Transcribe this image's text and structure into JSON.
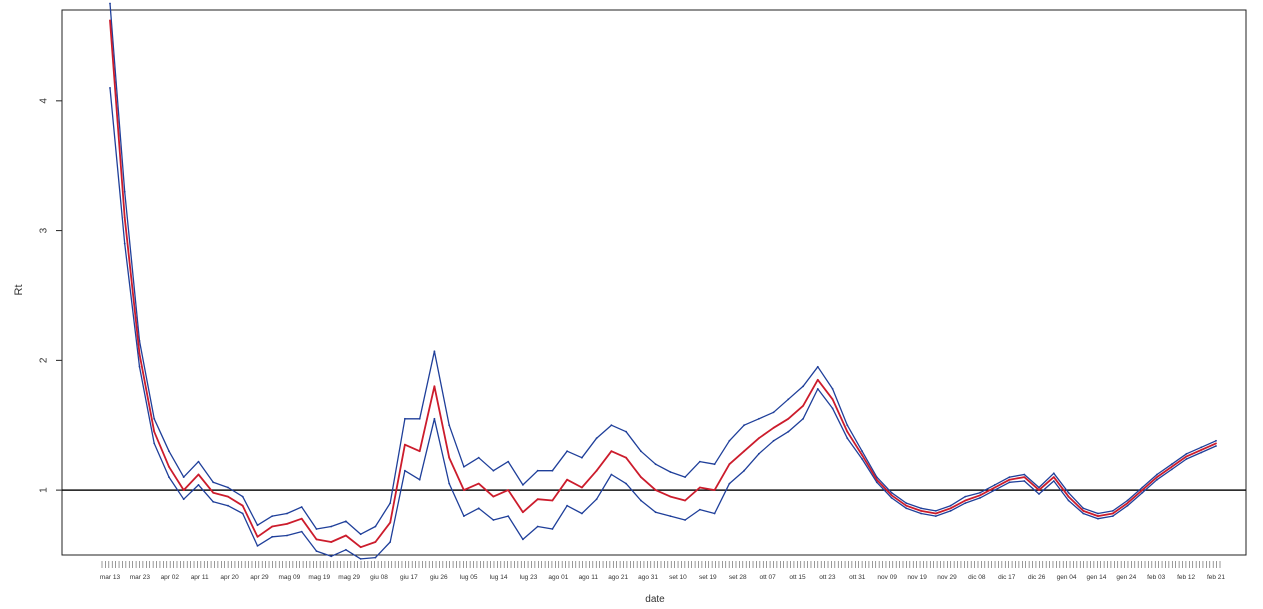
{
  "chart_data": {
    "type": "line",
    "title": "",
    "xlabel": "date",
    "ylabel": "Rt",
    "ylim": [
      0.5,
      4.7
    ],
    "yticks": [
      1,
      2,
      3,
      4
    ],
    "reference_line": 1,
    "grid": false,
    "x_tick_labels": [
      "mar 13",
      "mar 23",
      "apr 02",
      "apr 11",
      "apr 20",
      "apr 29",
      "mag 09",
      "mag 19",
      "mag 29",
      "giu 08",
      "giu 17",
      "giu 26",
      "lug 05",
      "lug 14",
      "lug 23",
      "ago 01",
      "ago 11",
      "ago 21",
      "ago 31",
      "set 10",
      "set 19",
      "set 28",
      "ott 07",
      "ott 15",
      "ott 23",
      "ott 31",
      "nov 09",
      "nov 19",
      "nov 29",
      "dic 08",
      "dic 17",
      "dic 26",
      "gen 04",
      "gen 14",
      "gen 24",
      "feb 03",
      "feb 12",
      "feb 21"
    ],
    "x": [
      "mar 13",
      "mar 18",
      "mar 23",
      "mar 28",
      "apr 02",
      "apr 06",
      "apr 11",
      "apr 16",
      "apr 20",
      "apr 25",
      "apr 29",
      "mag 04",
      "mag 09",
      "mag 14",
      "mag 19",
      "mag 24",
      "mag 29",
      "giu 03",
      "giu 08",
      "giu 12",
      "giu 17",
      "giu 21",
      "giu 26",
      "lug 01",
      "lug 05",
      "lug 10",
      "lug 14",
      "lug 19",
      "lug 23",
      "lug 28",
      "ago 01",
      "ago 06",
      "ago 11",
      "ago 16",
      "ago 21",
      "ago 26",
      "ago 31",
      "set 05",
      "set 10",
      "set 14",
      "set 19",
      "set 23",
      "set 28",
      "ott 02",
      "ott 07",
      "ott 11",
      "ott 15",
      "ott 19",
      "ott 23",
      "ott 27",
      "ott 31",
      "nov 04",
      "nov 09",
      "nov 14",
      "nov 19",
      "nov 24",
      "nov 29",
      "dic 03",
      "dic 08",
      "dic 12",
      "dic 17",
      "dic 21",
      "dic 26",
      "dic 30",
      "gen 04",
      "gen 09",
      "gen 14",
      "gen 19",
      "gen 24",
      "gen 29",
      "feb 03",
      "feb 07",
      "feb 12",
      "feb 17",
      "feb 21",
      "feb 25"
    ],
    "series": [
      {
        "role": "upper",
        "color": "#1f3f9a",
        "values": [
          4.75,
          3.3,
          2.15,
          1.55,
          1.3,
          1.1,
          1.22,
          1.06,
          1.02,
          0.95,
          0.73,
          0.8,
          0.82,
          0.87,
          0.7,
          0.72,
          0.76,
          0.66,
          0.72,
          0.9,
          1.55,
          1.55,
          2.07,
          1.5,
          1.18,
          1.25,
          1.15,
          1.22,
          1.04,
          1.15,
          1.15,
          1.3,
          1.25,
          1.4,
          1.5,
          1.45,
          1.3,
          1.2,
          1.14,
          1.1,
          1.22,
          1.2,
          1.38,
          1.5,
          1.55,
          1.6,
          1.7,
          1.8,
          1.95,
          1.78,
          1.5,
          1.3,
          1.1,
          0.98,
          0.9,
          0.86,
          0.84,
          0.88,
          0.95,
          0.98,
          1.04,
          1.1,
          1.12,
          1.02,
          1.13,
          0.98,
          0.86,
          0.82,
          0.84,
          0.92,
          1.02,
          1.12,
          1.2,
          1.28,
          1.33,
          1.38
        ]
      },
      {
        "role": "estimate",
        "color": "#cc1c2c",
        "values": [
          4.62,
          3.1,
          2.05,
          1.45,
          1.18,
          1.0,
          1.12,
          0.98,
          0.95,
          0.88,
          0.64,
          0.72,
          0.74,
          0.78,
          0.62,
          0.6,
          0.65,
          0.56,
          0.6,
          0.75,
          1.35,
          1.3,
          1.8,
          1.25,
          1.0,
          1.05,
          0.95,
          1.0,
          0.83,
          0.93,
          0.92,
          1.08,
          1.02,
          1.15,
          1.3,
          1.25,
          1.1,
          1.0,
          0.95,
          0.92,
          1.02,
          1.0,
          1.2,
          1.3,
          1.4,
          1.48,
          1.55,
          1.65,
          1.85,
          1.7,
          1.45,
          1.27,
          1.08,
          0.96,
          0.88,
          0.84,
          0.82,
          0.86,
          0.92,
          0.96,
          1.02,
          1.08,
          1.1,
          1.0,
          1.1,
          0.95,
          0.84,
          0.8,
          0.82,
          0.9,
          1.0,
          1.1,
          1.18,
          1.26,
          1.31,
          1.36
        ]
      },
      {
        "role": "lower",
        "color": "#1f3f9a",
        "values": [
          4.1,
          2.9,
          1.95,
          1.36,
          1.1,
          0.93,
          1.04,
          0.91,
          0.88,
          0.82,
          0.57,
          0.64,
          0.65,
          0.68,
          0.53,
          0.49,
          0.54,
          0.47,
          0.48,
          0.6,
          1.15,
          1.08,
          1.55,
          1.05,
          0.8,
          0.86,
          0.77,
          0.8,
          0.62,
          0.72,
          0.7,
          0.88,
          0.82,
          0.93,
          1.12,
          1.05,
          0.92,
          0.83,
          0.8,
          0.77,
          0.85,
          0.82,
          1.05,
          1.15,
          1.28,
          1.38,
          1.45,
          1.55,
          1.78,
          1.63,
          1.4,
          1.24,
          1.06,
          0.94,
          0.86,
          0.82,
          0.8,
          0.84,
          0.9,
          0.94,
          1.0,
          1.06,
          1.07,
          0.97,
          1.07,
          0.92,
          0.82,
          0.78,
          0.8,
          0.88,
          0.98,
          1.08,
          1.16,
          1.24,
          1.29,
          1.34
        ]
      }
    ]
  }
}
